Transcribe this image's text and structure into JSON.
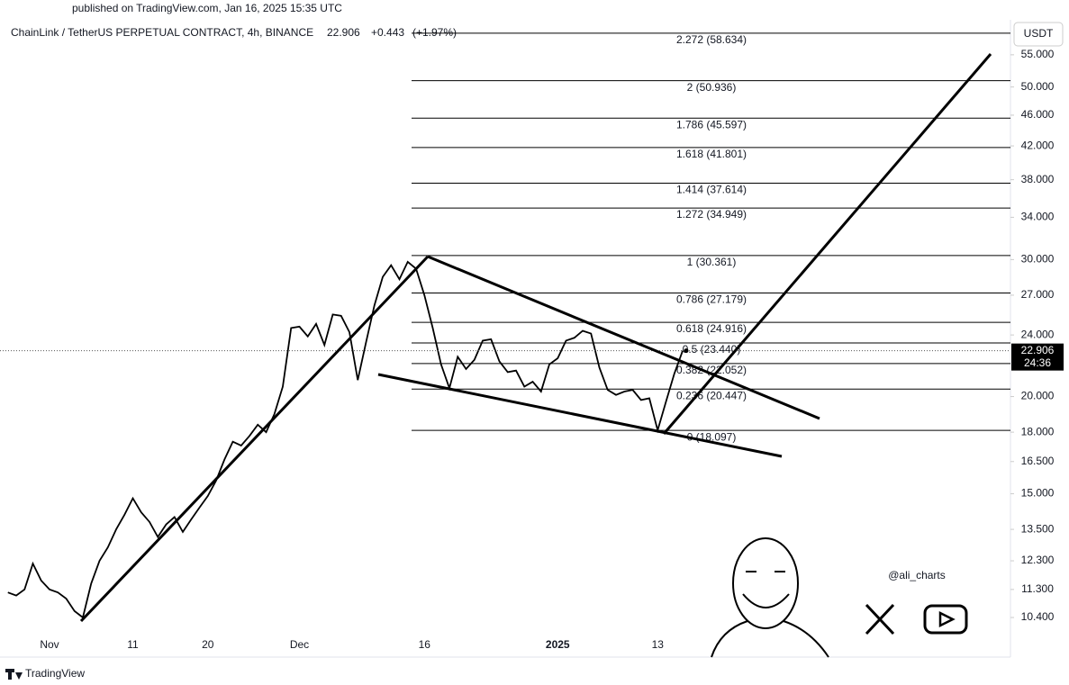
{
  "published": "published on TradingView.com, Jan 16, 2025 15:35 UTC",
  "chart_data": {
    "type": "line",
    "title": "ChainLink / TetherUS PERPETUAL CONTRACT, 4h, BINANCE",
    "header_price": "22.906",
    "header_change": "+0.443",
    "header_change_pct": "(+1.97%)",
    "currency": "USDT",
    "log_scale": true,
    "categories": [
      null,
      null,
      null,
      null,
      null,
      "Nov",
      null,
      null,
      null,
      null,
      null,
      null,
      null,
      null,
      null,
      "11",
      null,
      null,
      null,
      null,
      null,
      null,
      null,
      null,
      "20",
      null,
      null,
      null,
      null,
      null,
      null,
      null,
      null,
      null,
      null,
      "Dec",
      null,
      null,
      null,
      null,
      null,
      null,
      null,
      null,
      null,
      null,
      null,
      null,
      null,
      null,
      "16",
      null,
      null,
      null,
      null,
      null,
      null,
      null,
      null,
      null,
      null,
      null,
      null,
      null,
      null,
      null,
      "2025",
      null,
      null,
      null,
      null,
      null,
      null,
      null,
      null,
      null,
      null,
      null,
      "13",
      null,
      null,
      null
    ],
    "series": [
      {
        "name": "LINKUSDT",
        "color": "#000000",
        "values": [
          11.2,
          11.1,
          11.3,
          12.2,
          11.6,
          11.3,
          11.2,
          11.0,
          10.6,
          10.4,
          11.5,
          12.3,
          12.8,
          13.5,
          14.1,
          14.8,
          14.2,
          13.8,
          13.2,
          13.7,
          14.0,
          13.4,
          13.9,
          14.4,
          14.9,
          15.6,
          16.6,
          17.5,
          17.3,
          17.8,
          18.4,
          18.0,
          19.0,
          20.6,
          24.5,
          24.6,
          23.9,
          24.8,
          23.3,
          25.5,
          25.4,
          24.2,
          21.0,
          23.5,
          26.2,
          28.5,
          29.5,
          28.3,
          29.8,
          29.2,
          27.0,
          24.5,
          22.0,
          20.5,
          22.5,
          21.7,
          22.3,
          23.6,
          23.7,
          22.2,
          21.5,
          21.6,
          20.6,
          20.9,
          20.3,
          22.0,
          22.4,
          23.6,
          23.8,
          24.3,
          24.1,
          21.8,
          20.4,
          20.1,
          20.3,
          20.4,
          19.8,
          19.9,
          18.1,
          19.7,
          21.4,
          22.906
        ]
      }
    ],
    "last_price_label": "22.906",
    "countdown": "24:36",
    "ylim": [
      9.25,
      61
    ],
    "yticks": [
      {
        "value": 10.4,
        "label": "10.400"
      },
      {
        "value": 11.3,
        "label": "11.300"
      },
      {
        "value": 12.3,
        "label": "12.300"
      },
      {
        "value": 13.5,
        "label": "13.500"
      },
      {
        "value": 15,
        "label": "15.000"
      },
      {
        "value": 16.5,
        "label": "16.500"
      },
      {
        "value": 18,
        "label": "18.000"
      },
      {
        "value": 20,
        "label": "20.000"
      },
      {
        "value": 24,
        "label": "24.000"
      },
      {
        "value": 27,
        "label": "27.000"
      },
      {
        "value": 30,
        "label": "30.000"
      },
      {
        "value": 34,
        "label": "34.000"
      },
      {
        "value": 38,
        "label": "38.000"
      },
      {
        "value": 42,
        "label": "42.000"
      },
      {
        "value": 46,
        "label": "46.000"
      },
      {
        "value": 50,
        "label": "50.000"
      },
      {
        "value": 55,
        "label": "55.000"
      }
    ],
    "fib_levels": [
      {
        "value": 18.097,
        "label": "0 (18.097)"
      },
      {
        "value": 20.447,
        "label": "0.236 (20.447)"
      },
      {
        "value": 22.052,
        "label": "0.382 (22.052)"
      },
      {
        "value": 23.44,
        "label": "0.5 (23.440)"
      },
      {
        "value": 24.916,
        "label": "0.618 (24.916)"
      },
      {
        "value": 27.179,
        "label": "0.786 (27.179)"
      },
      {
        "value": 30.361,
        "label": "1 (30.361)"
      },
      {
        "value": 34.949,
        "label": "1.272 (34.949)"
      },
      {
        "value": 37.614,
        "label": "1.414 (37.614)"
      },
      {
        "value": 41.801,
        "label": "1.618 (41.801)"
      },
      {
        "value": 45.597,
        "label": "1.786 (45.597)"
      },
      {
        "value": 50.936,
        "label": "2 (50.936)"
      },
      {
        "value": 58.634,
        "label": "2.272 (58.634)"
      }
    ]
  },
  "watermark": "@ali_charts",
  "footer": "TradingView"
}
